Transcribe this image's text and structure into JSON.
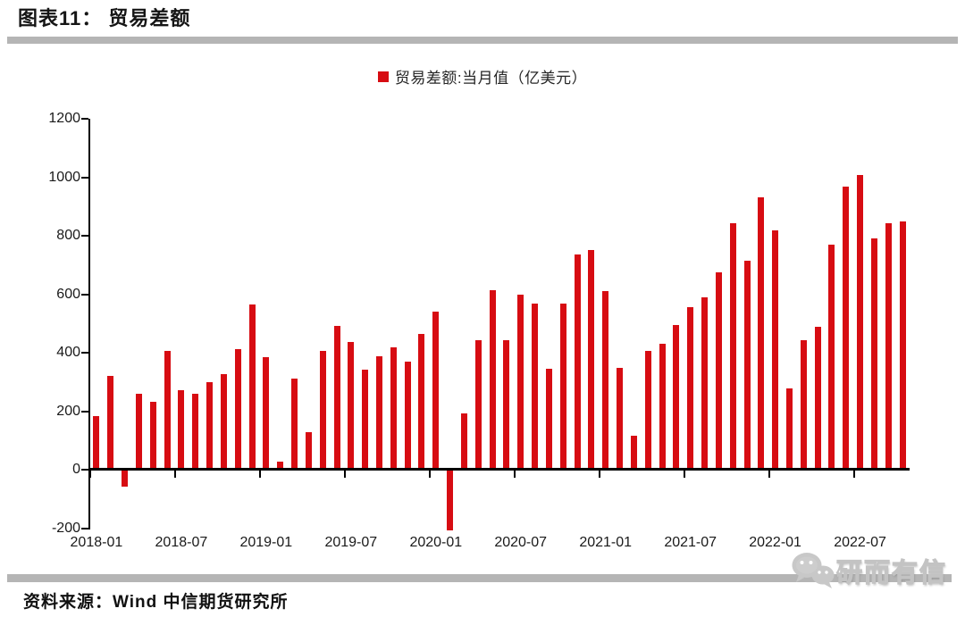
{
  "header": {
    "title": "图表11： 贸易差额"
  },
  "legend": {
    "label": "贸易差额:当月值（亿美元）"
  },
  "footer": {
    "source": "资料来源：Wind 中信期货研究所"
  },
  "watermark": {
    "label": "研而有信",
    "icon": "wechat-icon"
  },
  "colors": {
    "bar_red": "#d70c12",
    "divider_gray": "#b5b5b5",
    "axis_black": "#000000",
    "watermark_gray": "#c8c8c8"
  },
  "chart_data": {
    "type": "bar",
    "title": "贸易差额",
    "series_name": "贸易差额:当月值（亿美元）",
    "unit": "亿美元",
    "legend_position": "top",
    "grid": false,
    "ylim": [
      -200,
      1200
    ],
    "y_ticks": [
      1200,
      1000,
      800,
      600,
      400,
      200,
      0,
      -200
    ],
    "x_tick_labels": [
      "2018-01",
      "2018-07",
      "2019-01",
      "2019-07",
      "2020-01",
      "2020-07",
      "2021-01",
      "2021-07",
      "2022-01",
      "2022-07"
    ],
    "x_tick_every": 6,
    "x": [
      "2018-01",
      "2018-02",
      "2018-03",
      "2018-04",
      "2018-05",
      "2018-06",
      "2018-07",
      "2018-08",
      "2018-09",
      "2018-10",
      "2018-11",
      "2018-12",
      "2019-01",
      "2019-02",
      "2019-03",
      "2019-04",
      "2019-05",
      "2019-06",
      "2019-07",
      "2019-08",
      "2019-09",
      "2019-10",
      "2019-11",
      "2019-12",
      "2020-01",
      "2020-02",
      "2020-03",
      "2020-04",
      "2020-05",
      "2020-06",
      "2020-07",
      "2020-08",
      "2020-09",
      "2020-10",
      "2020-11",
      "2020-12",
      "2021-01",
      "2021-02",
      "2021-03",
      "2021-04",
      "2021-05",
      "2021-06",
      "2021-07",
      "2021-08",
      "2021-09",
      "2021-10",
      "2021-11",
      "2021-12",
      "2022-01",
      "2022-02",
      "2022-03",
      "2022-04",
      "2022-05",
      "2022-06",
      "2022-07",
      "2022-08",
      "2022-09",
      "2022-10"
    ],
    "values": [
      185,
      322,
      -58,
      262,
      233,
      407,
      273,
      261,
      300,
      327,
      413,
      565,
      386,
      29,
      313,
      130,
      408,
      492,
      437,
      344,
      390,
      420,
      369,
      466,
      542,
      -207,
      195,
      445,
      614,
      443,
      598,
      568,
      347,
      568,
      738,
      753,
      612,
      349,
      116,
      406,
      431,
      495,
      558,
      589,
      677,
      844,
      714,
      931,
      819,
      280,
      445,
      490,
      769,
      967,
      1008,
      790,
      844,
      849
    ]
  }
}
